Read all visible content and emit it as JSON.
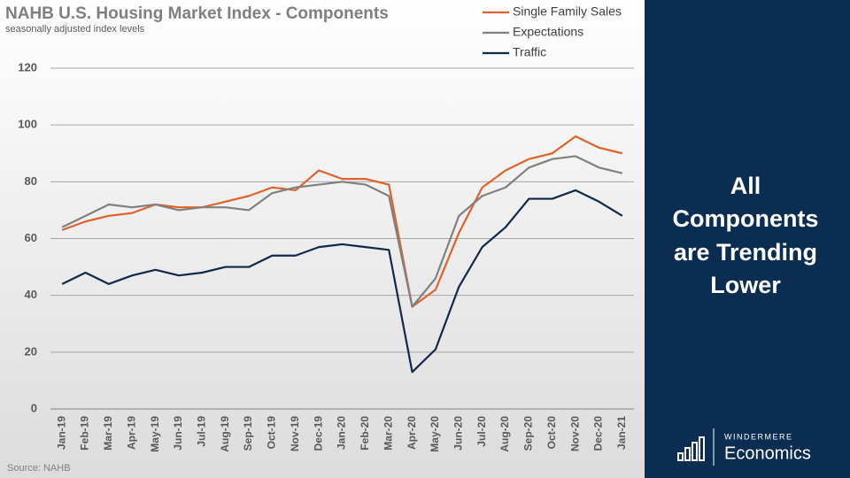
{
  "chart_data": {
    "type": "line",
    "title": "NAHB U.S. Housing Market Index - Components",
    "subtitle": "seasonally adjusted index levels",
    "source": "Source: NAHB",
    "categories": [
      "Jan-19",
      "Feb-19",
      "Mar-19",
      "Apr-19",
      "May-19",
      "Jun-19",
      "Jul-19",
      "Aug-19",
      "Sep-19",
      "Oct-19",
      "Nov-19",
      "Dec-19",
      "Jan-20",
      "Feb-20",
      "Mar-20",
      "Apr-20",
      "May-20",
      "Jun-20",
      "Jul-20",
      "Aug-20",
      "Sep-20",
      "Oct-20",
      "Nov-20",
      "Dec-20",
      "Jan-21"
    ],
    "series": [
      {
        "name": "Single Family Sales",
        "color": "#e0622a",
        "values": [
          63,
          66,
          68,
          69,
          72,
          71,
          71,
          73,
          75,
          78,
          77,
          84,
          81,
          81,
          79,
          36,
          42,
          62,
          78,
          84,
          88,
          90,
          96,
          92,
          90
        ]
      },
      {
        "name": "Expectations",
        "color": "#808080",
        "values": [
          64,
          68,
          72,
          71,
          72,
          70,
          71,
          71,
          70,
          76,
          78,
          79,
          80,
          79,
          75,
          36,
          46,
          68,
          75,
          78,
          85,
          88,
          89,
          85,
          83
        ]
      },
      {
        "name": "Traffic",
        "color": "#10294a",
        "values": [
          44,
          48,
          44,
          47,
          49,
          47,
          48,
          50,
          50,
          54,
          54,
          57,
          58,
          57,
          56,
          13,
          21,
          43,
          57,
          64,
          74,
          74,
          77,
          73,
          68
        ]
      }
    ],
    "ylim": [
      0,
      120
    ],
    "yticks": [
      0,
      20,
      40,
      60,
      80,
      100,
      120
    ],
    "grid": true
  },
  "panel": {
    "heading": [
      "All",
      "Components",
      "are Trending",
      "Lower"
    ],
    "brand": "WINDERMERE",
    "product": "Economics"
  }
}
